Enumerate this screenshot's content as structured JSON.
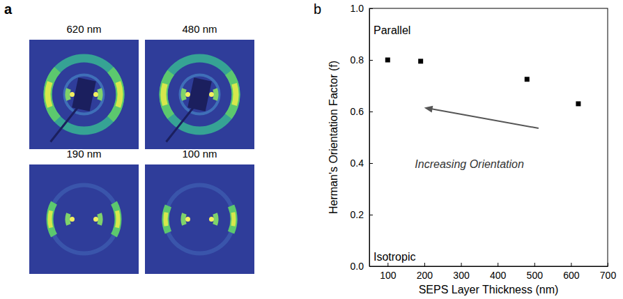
{
  "figure_a": {
    "label": "a",
    "titles": [
      "620 nm",
      "480 nm",
      "190 nm",
      "100 nm"
    ]
  },
  "chart_data": {
    "type": "scatter",
    "panel_label": "b",
    "x_label": "SEPS Layer Thickness (nm)",
    "y_label": "Herman's Orientation Factor (f)",
    "annotations": [
      "Parallel",
      "Isotropic",
      "Increasing Orientation"
    ],
    "x": [
      100,
      190,
      480,
      620
    ],
    "values": [
      0.8,
      0.795,
      0.725,
      0.63
    ],
    "xlim": [
      50,
      700
    ],
    "xticks": [
      100,
      200,
      300,
      400,
      500,
      600,
      700
    ],
    "ylim": [
      0,
      1
    ],
    "yticks": [
      {
        "value": 0,
        "label": "0.0"
      },
      0.2,
      0.4,
      0.6,
      0.8,
      {
        "value": 1,
        "label": "1.0"
      }
    ],
    "marker": "square",
    "color": "#000000",
    "grid": false
  }
}
